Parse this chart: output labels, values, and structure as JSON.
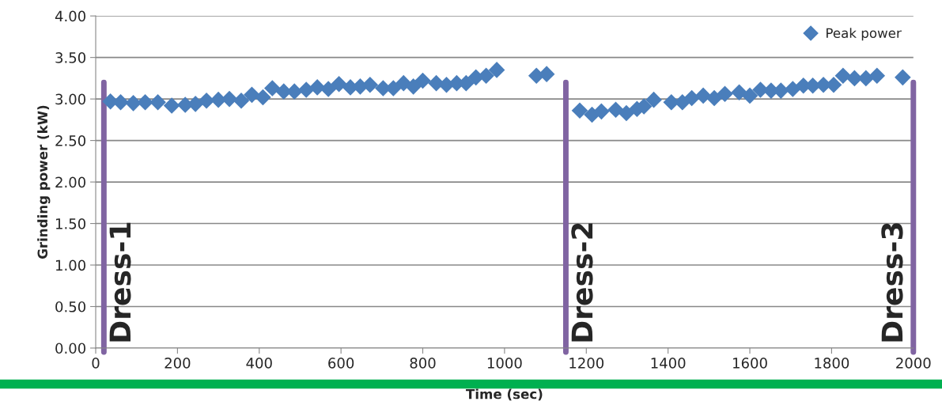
{
  "chart_data": {
    "type": "scatter",
    "xlabel": "Time (sec)",
    "ylabel": "Grinding power (kW)",
    "xlim": [
      0,
      2000
    ],
    "xticks": [
      0,
      200,
      400,
      600,
      800,
      1000,
      1200,
      1400,
      1600,
      1800,
      2000
    ],
    "ylim": [
      0,
      4
    ],
    "yticks": [
      {
        "value": 0,
        "label": "0.00"
      },
      {
        "value": 0.5,
        "label": "0.50"
      },
      {
        "value": 1,
        "label": "1.00"
      },
      {
        "value": 1.5,
        "label": "1.50"
      },
      {
        "value": 2,
        "label": "2.00"
      },
      {
        "value": 2.5,
        "label": "2.50"
      },
      {
        "value": 3,
        "label": "3.00"
      },
      {
        "value": 3.5,
        "label": "3.50"
      },
      {
        "value": 4,
        "label": "4.00"
      }
    ],
    "grid": "y",
    "legend": "top right",
    "marker": "diamond",
    "series": [
      {
        "name": "Peak power",
        "color": "#4a7ebb",
        "x": [
          36,
          61,
          92,
          121,
          152,
          186,
          219,
          244,
          271,
          300,
          327,
          356,
          382,
          409,
          432,
          460,
          486,
          515,
          542,
          569,
          595,
          623,
          647,
          671,
          703,
          728,
          753,
          777,
          800,
          833,
          858,
          883,
          906,
          930,
          955,
          981,
          1078,
          1103,
          1184,
          1214,
          1237,
          1272,
          1298,
          1324,
          1341,
          1365,
          1408,
          1435,
          1458,
          1486,
          1513,
          1539,
          1574,
          1600,
          1626,
          1652,
          1676,
          1705,
          1731,
          1754,
          1780,
          1805,
          1828,
          1856,
          1884,
          1911,
          1974
        ],
        "values": [
          2.97,
          2.96,
          2.95,
          2.96,
          2.96,
          2.92,
          2.93,
          2.94,
          2.98,
          2.99,
          3.0,
          2.98,
          3.05,
          3.02,
          3.13,
          3.09,
          3.09,
          3.11,
          3.14,
          3.12,
          3.18,
          3.14,
          3.15,
          3.17,
          3.13,
          3.13,
          3.19,
          3.15,
          3.22,
          3.19,
          3.17,
          3.19,
          3.19,
          3.26,
          3.28,
          3.35,
          3.28,
          3.3,
          2.86,
          2.81,
          2.85,
          2.87,
          2.83,
          2.88,
          2.91,
          2.99,
          2.96,
          2.96,
          3.01,
          3.04,
          3.01,
          3.06,
          3.08,
          3.04,
          3.11,
          3.1,
          3.1,
          3.12,
          3.16,
          3.16,
          3.17,
          3.17,
          3.28,
          3.25,
          3.25,
          3.28,
          3.26
        ]
      }
    ],
    "ref_lines": [
      {
        "axis": "x",
        "value": 20,
        "label": "Dress-1",
        "color": "#8064a2"
      },
      {
        "axis": "x",
        "value": 1150,
        "label": "Dress-2",
        "color": "#8064a2"
      },
      {
        "axis": "x",
        "value": 2000,
        "label": "Dress-3",
        "color": "#8064a2"
      }
    ]
  }
}
